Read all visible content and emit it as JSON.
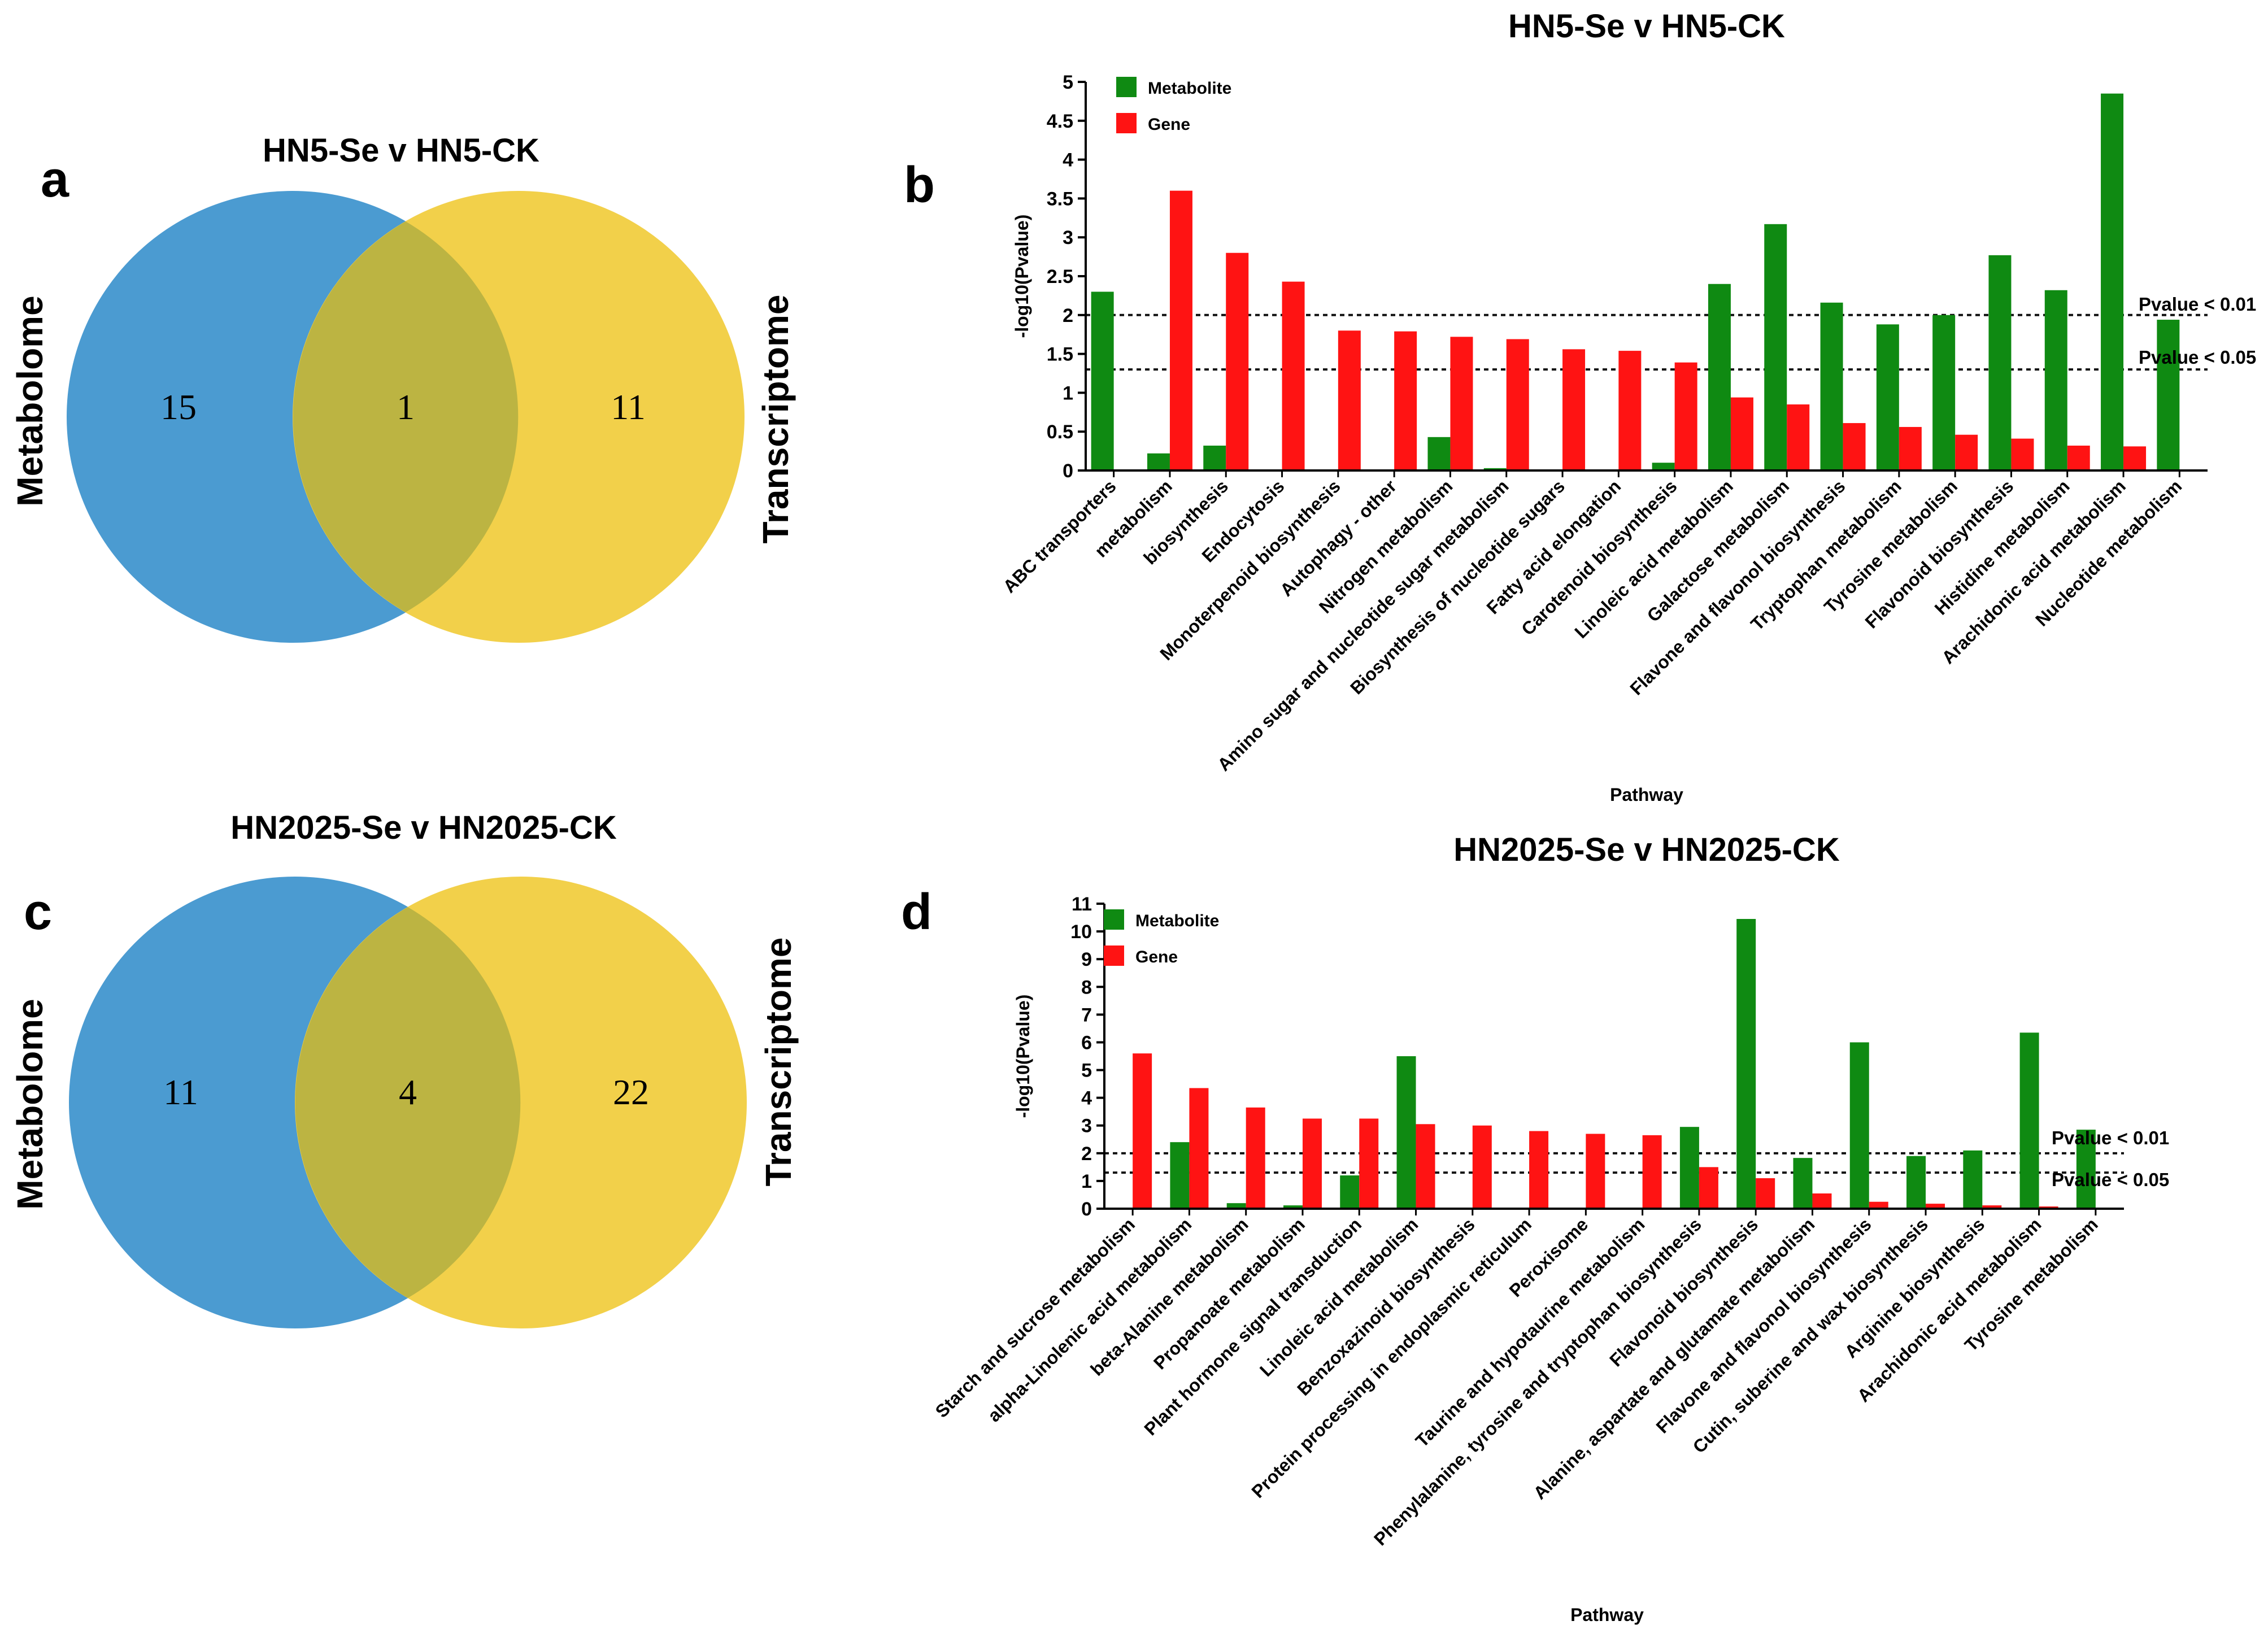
{
  "panels": {
    "a": {
      "letter": "a",
      "title": "HN5-Se v HN5-CK",
      "left_label": "Metabolome",
      "right_label": "Transcriptome",
      "left_only": "15",
      "overlap": "1",
      "right_only": "11"
    },
    "c": {
      "letter": "c",
      "title": "HN2025-Se v HN2025-CK",
      "left_label": "Metabolome",
      "right_label": "Transcriptome",
      "left_only": "11",
      "overlap": "4",
      "right_only": "22"
    },
    "b": {
      "letter": "b"
    },
    "d": {
      "letter": "d"
    }
  },
  "colors": {
    "metabolome": "#4b9bd1",
    "transcriptome": "#f2d04a",
    "overlap": "#bcb442",
    "metabolite": "#0f8a12",
    "gene": "#ff1313"
  },
  "chart_data": [
    {
      "type": "bar",
      "title": "HN5-Se v HN5-CK",
      "xlabel": "Pathway",
      "ylabel": "-log10(Pvalue)",
      "ylim": [
        0,
        5
      ],
      "yticks": [
        "0",
        "0.5",
        "1",
        "1.5",
        "2",
        "2.5",
        "3",
        "3.5",
        "4",
        "4.5",
        "5"
      ],
      "legend": [
        "Metabolite",
        "Gene"
      ],
      "thresholds": [
        {
          "label": "Pvalue < 0.01",
          "value": 2.0
        },
        {
          "label": "Pvalue < 0.05",
          "value": 1.3
        }
      ],
      "categories": [
        "ABC transporters",
        "metabolism",
        "biosynthesis",
        "Endocytosis",
        "Monoterpenoid biosynthesis",
        "Autophagy - other",
        "Nitrogen metabolism",
        "Amino sugar and nucleotide sugar metabolism",
        "Biosynthesis of nucleotide sugars",
        "Fatty acid elongation",
        "Carotenoid biosynthesis",
        "Linoleic acid metabolism",
        "Galactose metabolism",
        "Flavone and flavonol biosynthesis",
        "Tryptophan metabolism",
        "Tyrosine metabolism",
        "Flavonoid biosynthesis",
        "Histidine metabolism",
        "Arachidonic acid metabolism",
        "Nucleotide metabolism"
      ],
      "series": [
        {
          "name": "Metabolite",
          "values": [
            2.3,
            0.22,
            0.32,
            0,
            0,
            0,
            0.43,
            0.03,
            0,
            0,
            0.1,
            2.4,
            3.17,
            2.16,
            1.88,
            2.0,
            2.77,
            2.32,
            4.85,
            1.94
          ]
        },
        {
          "name": "Gene",
          "values": [
            0,
            3.6,
            2.8,
            2.43,
            1.8,
            1.79,
            1.72,
            1.69,
            1.56,
            1.54,
            1.39,
            0.94,
            0.85,
            0.61,
            0.56,
            0.46,
            0.41,
            0.32,
            0.31,
            0
          ]
        }
      ]
    },
    {
      "type": "bar",
      "title": "HN2025-Se v HN2025-CK",
      "xlabel": "Pathway",
      "ylabel": "-log10(Pvalue)",
      "ylim": [
        0,
        11
      ],
      "yticks": [
        "0",
        "1",
        "2",
        "3",
        "4",
        "5",
        "6",
        "7",
        "8",
        "9",
        "10",
        "11"
      ],
      "legend": [
        "Metabolite",
        "Gene"
      ],
      "thresholds": [
        {
          "label": "Pvalue < 0.01",
          "value": 2.0
        },
        {
          "label": "Pvalue < 0.05",
          "value": 1.3
        }
      ],
      "categories": [
        "Starch and sucrose metabolism",
        "alpha-Linolenic acid metabolism",
        "beta-Alanine metabolism",
        "Propanoate metabolism",
        "Plant hormone signal transduction",
        "Linoleic acid metabolism",
        "Benzoxazinoid biosynthesis",
        "Protein processing in endoplasmic reticulum",
        "Peroxisome",
        "Taurine and hypotaurine metabolism",
        "Phenylalanine, tyrosine and tryptophan biosynthesis",
        "Flavonoid biosynthesis",
        "Alanine, aspartate and glutamate metabolism",
        "Flavone and flavonol biosynthesis",
        "Cutin, suberine and wax biosynthesis",
        "Arginine biosynthesis",
        "Arachidonic acid metabolism",
        "Tyrosine metabolism"
      ],
      "series": [
        {
          "name": "Metabolite",
          "values": [
            0,
            2.4,
            0.2,
            0.12,
            1.2,
            5.5,
            0,
            0,
            0,
            0,
            2.95,
            10.45,
            1.83,
            6.0,
            1.9,
            2.1,
            6.35,
            2.85
          ]
        },
        {
          "name": "Gene",
          "values": [
            5.6,
            4.35,
            3.65,
            3.25,
            3.25,
            3.05,
            3.0,
            2.8,
            2.7,
            2.65,
            1.5,
            1.1,
            0.55,
            0.25,
            0.18,
            0.12,
            0.08,
            0
          ]
        }
      ]
    }
  ]
}
